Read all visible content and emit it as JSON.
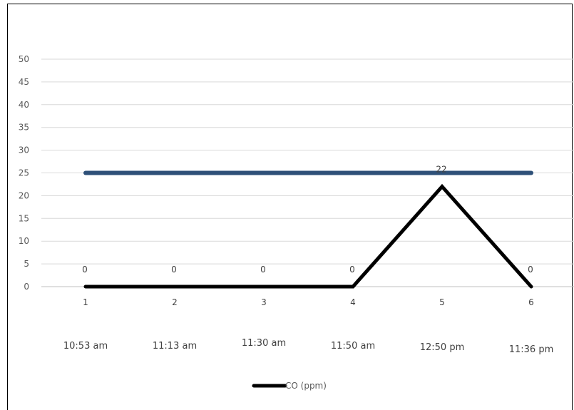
{
  "chart_data": {
    "type": "line",
    "title": "",
    "xlabel": "",
    "ylabel": "",
    "ylim": [
      0,
      50
    ],
    "y_ticks": [
      0,
      5,
      10,
      15,
      20,
      25,
      30,
      35,
      40,
      45,
      50
    ],
    "grid": "horizontal",
    "legend_position": "bottom",
    "categories": [
      "1",
      "2",
      "3",
      "4",
      "5",
      "6"
    ],
    "times": [
      "10:53 am",
      "11:13 am",
      "11:30 am",
      "11:50 am",
      "12:50 pm",
      "11:36 pm"
    ],
    "series": [
      {
        "name": "CO (ppm)",
        "values": [
          0,
          0,
          0,
          0,
          22,
          0
        ],
        "data_labels": [
          "0",
          "0",
          "0",
          "0",
          "22",
          "0"
        ],
        "color": "#000000"
      },
      {
        "values": [
          25,
          25,
          25,
          25,
          25,
          25
        ],
        "color": "#2E5078"
      }
    ],
    "colors": {
      "grid": "#D9D9D9",
      "tick_text": "#595959"
    }
  }
}
